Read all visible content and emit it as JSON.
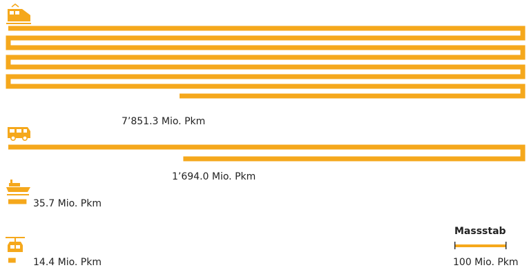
{
  "colors": {
    "accent": "#f5a81c",
    "text": "#222222",
    "icon": "#f5a81c"
  },
  "chart_data": {
    "type": "bar",
    "unit": "Mio. Pkm",
    "categories": [
      "train",
      "bus",
      "ship",
      "cableway"
    ],
    "icons": [
      "train-icon",
      "bus-icon",
      "ship-icon",
      "cable-car-icon"
    ],
    "values": [
      7851.3,
      1694.0,
      35.7,
      14.4
    ],
    "labels": [
      "7’851.3 Mio. Pkm",
      "1’694.0 Mio. Pkm",
      "35.7 Mio. Pkm",
      "14.4 Mio. Pkm"
    ],
    "scale": {
      "title": "Massstab",
      "value": 100,
      "label": "100 Mio. Pkm"
    }
  }
}
